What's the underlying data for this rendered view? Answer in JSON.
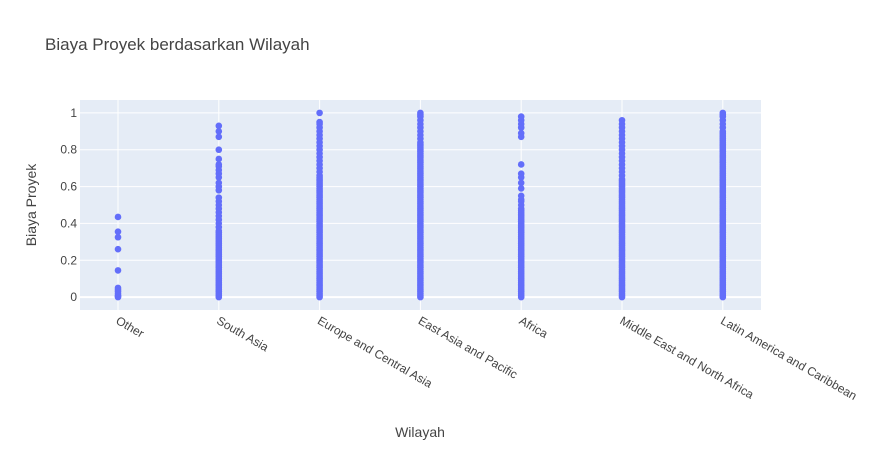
{
  "chart_data": {
    "type": "scatter",
    "title": "Biaya Proyek berdasarkan Wilayah",
    "xlabel": "Wilayah",
    "ylabel": "Biaya Proyek",
    "ylim": [
      -0.07,
      1.07
    ],
    "yticks": [
      0,
      0.2,
      0.4,
      0.6,
      0.8,
      1
    ],
    "ytick_labels": [
      "0",
      "0.2",
      "0.4",
      "0.6",
      "0.8",
      "1"
    ],
    "grid": true,
    "legend": "none",
    "colors": {
      "marker": "#636efa",
      "plot_bg": "#e5ecf6",
      "grid": "#ffffff",
      "text": "#444444"
    },
    "categories": [
      "Other",
      "South Asia",
      "Europe and Central Asia",
      "East Asia and Pacific",
      "Africa",
      "Middle East and North Africa",
      "Latin America and Caribbean"
    ],
    "series": [
      {
        "values": [
          [
            0.0,
            0.005,
            0.01,
            0.02,
            0.03,
            0.04,
            0.05,
            0.145,
            0.26,
            0.325,
            0.355,
            0.435
          ],
          [
            0.0,
            0.01,
            0.02,
            0.03,
            0.04,
            0.05,
            0.06,
            0.07,
            0.08,
            0.09,
            0.1,
            0.11,
            0.12,
            0.13,
            0.14,
            0.15,
            0.16,
            0.17,
            0.18,
            0.19,
            0.2,
            0.21,
            0.22,
            0.23,
            0.24,
            0.25,
            0.26,
            0.27,
            0.28,
            0.29,
            0.3,
            0.31,
            0.32,
            0.33,
            0.34,
            0.35,
            0.36,
            0.38,
            0.4,
            0.42,
            0.44,
            0.46,
            0.48,
            0.5,
            0.52,
            0.54,
            0.58,
            0.6,
            0.62,
            0.65,
            0.67,
            0.69,
            0.71,
            0.72,
            0.75,
            0.8,
            0.87,
            0.9,
            0.93
          ],
          [
            0.0,
            0.01,
            0.02,
            0.03,
            0.04,
            0.05,
            0.06,
            0.07,
            0.08,
            0.09,
            0.1,
            0.11,
            0.12,
            0.13,
            0.14,
            0.15,
            0.16,
            0.17,
            0.18,
            0.19,
            0.2,
            0.21,
            0.22,
            0.23,
            0.24,
            0.25,
            0.26,
            0.27,
            0.28,
            0.29,
            0.3,
            0.31,
            0.32,
            0.33,
            0.34,
            0.35,
            0.36,
            0.37,
            0.38,
            0.39,
            0.4,
            0.41,
            0.42,
            0.43,
            0.44,
            0.45,
            0.46,
            0.47,
            0.48,
            0.49,
            0.5,
            0.51,
            0.52,
            0.53,
            0.54,
            0.55,
            0.56,
            0.57,
            0.58,
            0.59,
            0.6,
            0.61,
            0.62,
            0.63,
            0.64,
            0.65,
            0.66,
            0.68,
            0.7,
            0.72,
            0.74,
            0.76,
            0.78,
            0.8,
            0.82,
            0.84,
            0.86,
            0.88,
            0.9,
            0.92,
            0.94,
            0.95,
            1.0
          ],
          [
            0.0,
            0.01,
            0.02,
            0.03,
            0.04,
            0.05,
            0.06,
            0.07,
            0.08,
            0.09,
            0.1,
            0.11,
            0.12,
            0.13,
            0.14,
            0.15,
            0.16,
            0.17,
            0.18,
            0.19,
            0.2,
            0.21,
            0.22,
            0.23,
            0.24,
            0.25,
            0.26,
            0.27,
            0.28,
            0.29,
            0.3,
            0.31,
            0.32,
            0.33,
            0.34,
            0.35,
            0.36,
            0.37,
            0.38,
            0.39,
            0.4,
            0.41,
            0.42,
            0.43,
            0.44,
            0.45,
            0.46,
            0.47,
            0.48,
            0.49,
            0.5,
            0.51,
            0.52,
            0.53,
            0.54,
            0.55,
            0.56,
            0.57,
            0.58,
            0.59,
            0.6,
            0.61,
            0.62,
            0.63,
            0.64,
            0.65,
            0.66,
            0.67,
            0.68,
            0.69,
            0.7,
            0.71,
            0.72,
            0.73,
            0.74,
            0.75,
            0.76,
            0.77,
            0.78,
            0.79,
            0.8,
            0.81,
            0.82,
            0.83,
            0.84,
            0.86,
            0.88,
            0.9,
            0.92,
            0.94,
            0.96,
            0.98,
            0.99,
            1.0
          ],
          [
            0.0,
            0.01,
            0.02,
            0.03,
            0.04,
            0.05,
            0.06,
            0.07,
            0.08,
            0.09,
            0.1,
            0.11,
            0.12,
            0.13,
            0.14,
            0.15,
            0.16,
            0.17,
            0.18,
            0.19,
            0.2,
            0.21,
            0.22,
            0.23,
            0.24,
            0.25,
            0.26,
            0.27,
            0.28,
            0.29,
            0.3,
            0.31,
            0.32,
            0.33,
            0.34,
            0.35,
            0.36,
            0.37,
            0.38,
            0.39,
            0.4,
            0.41,
            0.42,
            0.43,
            0.44,
            0.45,
            0.46,
            0.47,
            0.48,
            0.5,
            0.52,
            0.53,
            0.55,
            0.59,
            0.62,
            0.65,
            0.67,
            0.72,
            0.87,
            0.89,
            0.92,
            0.94,
            0.96,
            0.98
          ],
          [
            0.0,
            0.01,
            0.02,
            0.03,
            0.04,
            0.05,
            0.06,
            0.07,
            0.08,
            0.09,
            0.1,
            0.11,
            0.12,
            0.13,
            0.14,
            0.15,
            0.16,
            0.17,
            0.18,
            0.19,
            0.2,
            0.21,
            0.22,
            0.23,
            0.24,
            0.25,
            0.26,
            0.27,
            0.28,
            0.29,
            0.3,
            0.31,
            0.32,
            0.33,
            0.34,
            0.35,
            0.36,
            0.37,
            0.38,
            0.39,
            0.4,
            0.41,
            0.42,
            0.43,
            0.44,
            0.45,
            0.46,
            0.47,
            0.48,
            0.49,
            0.5,
            0.51,
            0.52,
            0.53,
            0.54,
            0.55,
            0.56,
            0.57,
            0.58,
            0.59,
            0.6,
            0.61,
            0.62,
            0.63,
            0.64,
            0.66,
            0.68,
            0.7,
            0.72,
            0.74,
            0.76,
            0.78,
            0.8,
            0.82,
            0.84,
            0.86,
            0.88,
            0.9,
            0.92,
            0.94,
            0.96
          ],
          [
            0.0,
            0.01,
            0.02,
            0.03,
            0.04,
            0.05,
            0.06,
            0.07,
            0.08,
            0.09,
            0.1,
            0.11,
            0.12,
            0.13,
            0.14,
            0.15,
            0.16,
            0.17,
            0.18,
            0.19,
            0.2,
            0.21,
            0.22,
            0.23,
            0.24,
            0.25,
            0.26,
            0.27,
            0.28,
            0.29,
            0.3,
            0.31,
            0.32,
            0.33,
            0.34,
            0.35,
            0.36,
            0.37,
            0.38,
            0.39,
            0.4,
            0.41,
            0.42,
            0.43,
            0.44,
            0.45,
            0.46,
            0.47,
            0.48,
            0.49,
            0.5,
            0.51,
            0.52,
            0.53,
            0.54,
            0.55,
            0.56,
            0.57,
            0.58,
            0.59,
            0.6,
            0.61,
            0.62,
            0.63,
            0.64,
            0.65,
            0.66,
            0.67,
            0.68,
            0.69,
            0.7,
            0.71,
            0.72,
            0.73,
            0.74,
            0.75,
            0.76,
            0.77,
            0.78,
            0.79,
            0.8,
            0.81,
            0.82,
            0.83,
            0.84,
            0.85,
            0.86,
            0.87,
            0.88,
            0.89,
            0.9,
            0.92,
            0.94,
            0.96,
            0.98,
            0.99,
            1.0
          ]
        ]
      }
    ]
  }
}
